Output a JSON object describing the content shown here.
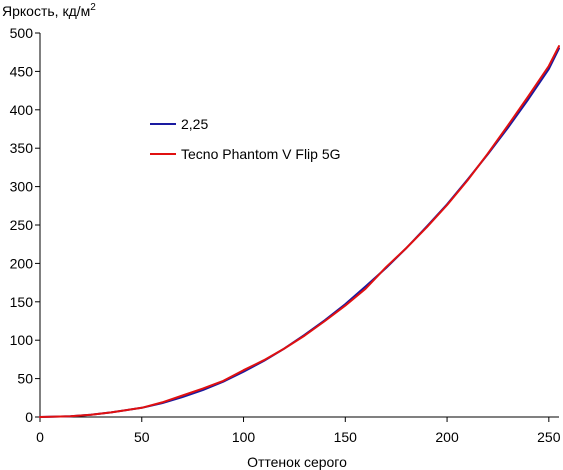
{
  "chart_data": {
    "type": "line",
    "title": "",
    "ylabel": "Яркость, кд/м",
    "ylabel_sup": "2",
    "xlabel": "Оттенок серого",
    "xlim": [
      0,
      255
    ],
    "ylim": [
      0,
      500
    ],
    "x_ticks": [
      0,
      50,
      100,
      150,
      200,
      250
    ],
    "y_ticks": [
      0,
      50,
      100,
      150,
      200,
      250,
      300,
      350,
      400,
      450,
      500
    ],
    "grid": false,
    "legend_position": "upper-left",
    "series": [
      {
        "name": "2,25",
        "color": "#1a1aa0",
        "x": [
          0,
          15,
          25,
          35,
          50,
          60,
          70,
          80,
          90,
          100,
          110,
          120,
          130,
          140,
          150,
          160,
          170,
          180,
          190,
          200,
          210,
          220,
          230,
          240,
          250,
          255
        ],
        "y": [
          0,
          1,
          3,
          6,
          12,
          18,
          26,
          35,
          46,
          59,
          73,
          89,
          107,
          126,
          147,
          170,
          194,
          220,
          248,
          277,
          309,
          342,
          377,
          414,
          453,
          480
        ]
      },
      {
        "name": "Tecno Phantom V Flip 5G",
        "color": "#e01010",
        "x": [
          0,
          15,
          25,
          35,
          50,
          60,
          70,
          80,
          90,
          100,
          110,
          120,
          130,
          140,
          150,
          160,
          170,
          180,
          190,
          200,
          210,
          220,
          230,
          240,
          250,
          255
        ],
        "y": [
          0,
          1,
          3,
          6,
          12,
          19,
          28,
          37,
          47,
          61,
          74,
          89,
          106,
          125,
          145,
          167,
          195,
          220,
          247,
          276,
          308,
          343,
          380,
          418,
          457,
          483
        ]
      }
    ]
  }
}
